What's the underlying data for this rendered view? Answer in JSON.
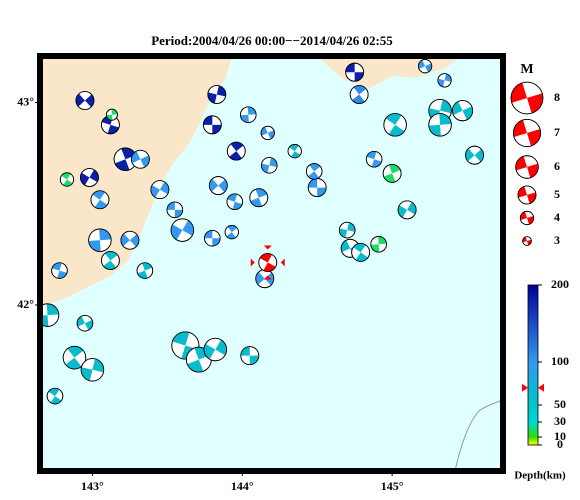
{
  "chart_data": {
    "type": "focal-map",
    "title": "Period:2004/04/26 00:00−−2014/04/26 02:55",
    "xlim": [
      142.65,
      145.74
    ],
    "ylim": [
      41.18,
      43.23
    ],
    "xticks": [
      {
        "value": 143,
        "label": "143°"
      },
      {
        "value": 144,
        "label": "144°"
      },
      {
        "value": 145,
        "label": "145°"
      }
    ],
    "yticks": [
      {
        "value": 42,
        "label": "42°"
      },
      {
        "value": 43,
        "label": "43°"
      }
    ],
    "land_color": "#fae6c8",
    "sea_color": "#e0ffff",
    "magnitude_legend": {
      "title": "M",
      "values": [
        8,
        7,
        6,
        5,
        4,
        3
      ],
      "color": "#ff0000"
    },
    "depth_scale": {
      "label": "Depth(km)",
      "ticks": [
        200,
        100,
        50,
        30,
        10,
        0
      ],
      "colors": [
        [
          0,
          "#ffff00"
        ],
        [
          10,
          "#33dd00"
        ],
        [
          30,
          "#00d8d8"
        ],
        [
          50,
          "#00c4c4"
        ],
        [
          100,
          "#3399ee"
        ],
        [
          200,
          "#000099"
        ]
      ]
    },
    "latest_event": {
      "lon": 144.17,
      "lat": 42.21,
      "depth": 70,
      "mag": 5,
      "color": "#ff0000"
    },
    "events": {
      "lon": [
        144.75,
        144.78,
        145.32,
        145.47,
        145.02,
        145.32,
        145.55,
        144.88,
        145.0,
        145.1,
        144.5,
        144.48,
        144.18,
        144.17,
        144.35,
        144.04,
        143.84,
        143.95,
        144.11,
        143.6,
        143.8,
        143.93,
        144.7,
        144.72,
        144.79,
        144.91,
        144.15,
        143.62,
        143.71,
        143.82,
        144.05,
        142.88,
        143.0,
        142.95,
        142.75,
        142.7,
        142.95,
        143.12,
        143.22,
        142.98,
        143.8,
        143.96,
        143.83,
        143.32,
        143.05,
        143.05,
        143.25,
        142.78,
        143.35,
        143.45,
        143.55,
        143.12,
        145.35,
        145.22,
        142.83,
        143.13
      ],
      "lat": [
        43.15,
        43.04,
        42.96,
        42.96,
        42.89,
        42.89,
        42.74,
        42.72,
        42.65,
        42.47,
        42.58,
        42.66,
        42.69,
        42.85,
        42.76,
        42.94,
        42.59,
        42.51,
        42.53,
        42.37,
        42.33,
        42.36,
        42.37,
        42.28,
        42.26,
        42.3,
        42.13,
        41.8,
        41.73,
        41.78,
        41.75,
        41.74,
        41.68,
        41.91,
        41.55,
        41.95,
        43.01,
        42.89,
        42.72,
        42.63,
        42.89,
        42.76,
        43.04,
        42.72,
        42.52,
        42.32,
        42.32,
        42.17,
        42.17,
        42.57,
        42.47,
        42.22,
        43.11,
        43.18,
        42.62,
        42.94
      ],
      "depth": [
        180,
        110,
        60,
        60,
        60,
        60,
        60,
        100,
        20,
        60,
        100,
        100,
        100,
        100,
        60,
        100,
        100,
        100,
        100,
        100,
        100,
        100,
        60,
        60,
        60,
        20,
        100,
        60,
        60,
        60,
        60,
        60,
        60,
        60,
        60,
        60,
        180,
        180,
        180,
        180,
        180,
        180,
        180,
        100,
        100,
        100,
        100,
        100,
        60,
        100,
        100,
        60,
        100,
        100,
        20,
        20
      ],
      "mag": [
        5,
        5,
        6,
        5.5,
        6,
        6,
        5,
        4.5,
        5,
        5,
        5,
        4.5,
        4.5,
        4,
        4,
        4.5,
        5,
        4.5,
        5,
        6,
        4.5,
        4,
        4.5,
        5,
        5,
        4.5,
        5,
        7,
        6.5,
        6,
        5,
        6,
        6,
        4.5,
        4.5,
        6,
        5,
        5,
        6,
        5,
        5,
        5,
        5,
        5,
        5,
        6,
        5,
        4.5,
        4.5,
        5,
        4.5,
        5,
        4,
        4,
        4,
        3.5
      ]
    }
  }
}
